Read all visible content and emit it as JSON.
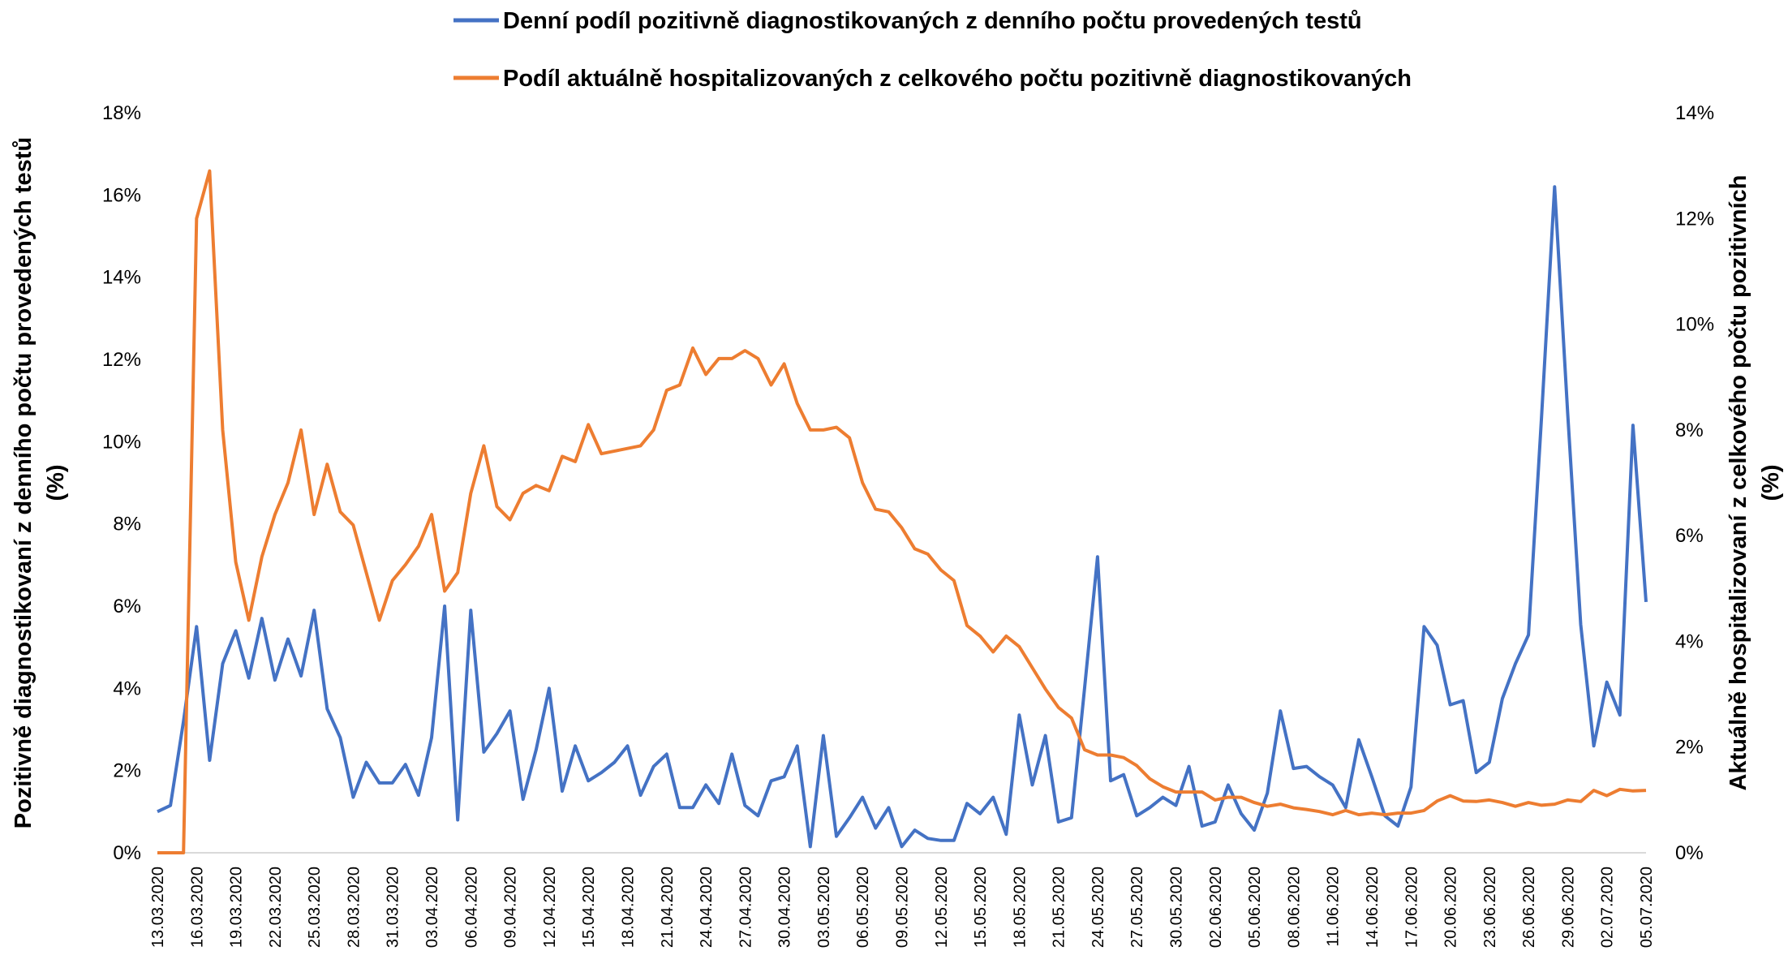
{
  "chart_data": {
    "type": "line",
    "categories": [
      "13.03.2020",
      null,
      null,
      "16.03.2020",
      null,
      null,
      "19.03.2020",
      null,
      null,
      "22.03.2020",
      null,
      null,
      "25.03.2020",
      null,
      null,
      "28.03.2020",
      null,
      null,
      "31.03.2020",
      null,
      null,
      "03.04.2020",
      null,
      null,
      "06.04.2020",
      null,
      null,
      "09.04.2020",
      null,
      null,
      "12.04.2020",
      null,
      null,
      "15.04.2020",
      null,
      null,
      "18.04.2020",
      null,
      null,
      "21.04.2020",
      null,
      null,
      "24.04.2020",
      null,
      null,
      "27.04.2020",
      null,
      null,
      "30.04.2020",
      null,
      null,
      "03.05.2020",
      null,
      null,
      "06.05.2020",
      null,
      null,
      "09.05.2020",
      null,
      null,
      "12.05.2020",
      null,
      null,
      "15.05.2020",
      null,
      null,
      "18.05.2020",
      null,
      null,
      "21.05.2020",
      null,
      null,
      "24.05.2020",
      null,
      null,
      "27.05.2020",
      null,
      null,
      "30.05.2020",
      null,
      null,
      "02.06.2020",
      null,
      null,
      "05.06.2020",
      null,
      null,
      "08.06.2020",
      null,
      null,
      "11.06.2020",
      null,
      null,
      "14.06.2020",
      null,
      null,
      "17.06.2020",
      null,
      null,
      "20.06.2020",
      null,
      null,
      "23.06.2020",
      null,
      null,
      "26.06.2020",
      null,
      null,
      "29.06.2020",
      null,
      null,
      "02.07.2020",
      null,
      null,
      "05.07.2020"
    ],
    "series": [
      {
        "name": "Denní podíl pozitivně diagnostikovaných z denního počtu provedených testů",
        "color": "#4472c4",
        "axis": "y",
        "values": [
          1.0,
          1.15,
          3.2,
          5.5,
          2.25,
          4.6,
          5.4,
          4.25,
          5.7,
          4.2,
          5.2,
          4.3,
          5.9,
          3.5,
          2.8,
          1.35,
          2.2,
          1.7,
          1.7,
          2.15,
          1.4,
          2.8,
          6.0,
          0.8,
          5.9,
          2.45,
          2.9,
          3.45,
          1.3,
          2.5,
          4.0,
          1.5,
          2.6,
          1.75,
          1.95,
          2.2,
          2.6,
          1.4,
          2.1,
          2.4,
          1.1,
          1.1,
          1.65,
          1.2,
          2.4,
          1.15,
          0.9,
          1.75,
          1.85,
          2.6,
          0.15,
          2.85,
          0.4,
          0.85,
          1.35,
          0.6,
          1.1,
          0.15,
          0.55,
          0.35,
          0.3,
          0.3,
          1.2,
          0.95,
          1.35,
          0.45,
          3.35,
          1.65,
          2.85,
          0.75,
          0.85,
          4.0,
          7.2,
          1.75,
          1.9,
          0.9,
          1.1,
          1.35,
          1.15,
          2.1,
          0.65,
          0.75,
          1.65,
          0.95,
          0.55,
          1.45,
          3.45,
          2.05,
          2.1,
          1.85,
          1.65,
          1.1,
          2.75,
          1.85,
          0.9,
          0.65,
          1.6,
          5.5,
          5.05,
          3.6,
          3.7,
          1.95,
          2.2,
          3.75,
          4.6,
          5.3,
          10.6,
          16.2,
          10.7,
          5.55,
          2.6,
          4.15,
          3.35,
          10.4,
          6.1
        ]
      },
      {
        "name": "Podíl aktuálně hospitalizovaných z celkového počtu pozitivně diagnostikovaných",
        "color": "#ed7d31",
        "axis": "y2",
        "values": [
          0,
          0,
          0,
          12.0,
          12.9,
          8.0,
          5.5,
          4.4,
          5.6,
          6.4,
          7.0,
          8.0,
          6.4,
          7.35,
          6.45,
          6.2,
          5.3,
          4.4,
          5.15,
          5.45,
          5.8,
          6.4,
          4.95,
          5.3,
          6.8,
          7.7,
          6.55,
          6.3,
          6.8,
          6.95,
          6.85,
          7.5,
          7.4,
          8.1,
          7.55,
          7.6,
          7.65,
          7.7,
          8.0,
          8.75,
          8.85,
          9.55,
          9.05,
          9.35,
          9.35,
          9.5,
          9.35,
          8.85,
          9.25,
          8.5,
          8.0,
          8.0,
          8.05,
          7.85,
          7.0,
          6.5,
          6.45,
          6.15,
          5.75,
          5.65,
          5.35,
          5.15,
          4.3,
          4.1,
          3.8,
          4.1,
          3.9,
          3.5,
          3.1,
          2.75,
          2.55,
          1.95,
          1.85,
          1.85,
          1.8,
          1.65,
          1.4,
          1.25,
          1.15,
          1.15,
          1.15,
          1.0,
          1.05,
          1.05,
          0.95,
          0.88,
          0.92,
          0.85,
          0.82,
          0.78,
          0.72,
          0.8,
          0.72,
          0.75,
          0.72,
          0.75,
          0.75,
          0.8,
          0.98,
          1.08,
          0.98,
          0.97,
          1.0,
          0.95,
          0.88,
          0.95,
          0.9,
          0.92,
          1.0,
          0.97,
          1.18,
          1.08,
          1.2,
          1.17,
          1.18
        ]
      }
    ],
    "ylabel": [
      "Pozitivně diagnostikovaní z denního počtu provedených testů",
      "(%)"
    ],
    "y2label": [
      "Aktuálně hospitalizovaní z celkového počtu pozitivních",
      "(%)"
    ],
    "ylim": [
      0,
      18
    ],
    "yticks": [
      {
        "value": 0,
        "label": "0%"
      },
      {
        "value": 2,
        "label": "2%"
      },
      {
        "value": 4,
        "label": "4%"
      },
      {
        "value": 6,
        "label": "6%"
      },
      {
        "value": 8,
        "label": "8%"
      },
      {
        "value": 10,
        "label": "10%"
      },
      {
        "value": 12,
        "label": "12%"
      },
      {
        "value": 14,
        "label": "14%"
      },
      {
        "value": 16,
        "label": "16%"
      },
      {
        "value": 18,
        "label": "18%"
      }
    ],
    "y2lim": [
      0,
      14
    ],
    "y2ticks": [
      {
        "value": 0,
        "label": "0%"
      },
      {
        "value": 2,
        "label": "2%"
      },
      {
        "value": 4,
        "label": "4%"
      },
      {
        "value": 6,
        "label": "6%"
      },
      {
        "value": 8,
        "label": "8%"
      },
      {
        "value": 10,
        "label": "10%"
      },
      {
        "value": 12,
        "label": "12%"
      },
      {
        "value": 14,
        "label": "14%"
      }
    ],
    "grid": false,
    "legend": "top"
  }
}
